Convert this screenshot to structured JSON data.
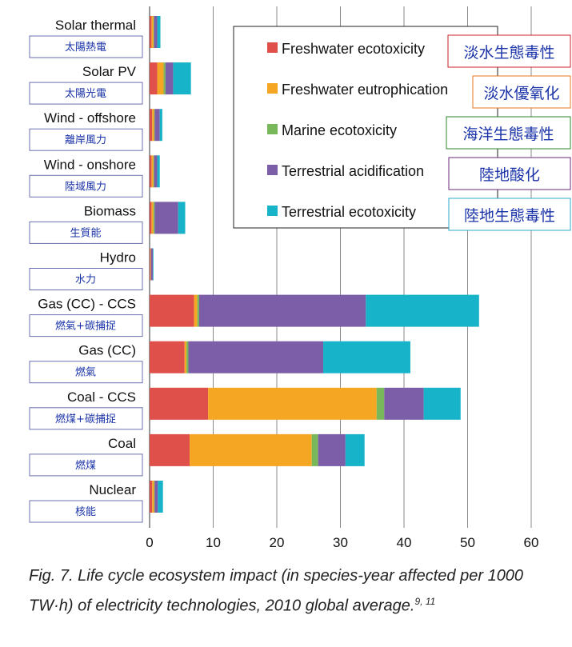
{
  "chart_data": {
    "type": "bar",
    "orientation": "horizontal",
    "stacked": true,
    "categories": [
      "Solar thermal",
      "Solar PV",
      "Wind - offshore",
      "Wind - onshore",
      "Biomass",
      "Hydro",
      "Gas (CC) - CCS",
      "Gas (CC)",
      "Coal - CCS",
      "Coal",
      "Nuclear"
    ],
    "categories_zh": [
      "太陽熱電",
      "太陽光電",
      "離岸風力",
      "陸域風力",
      "生質能",
      "水力",
      "燃氣+碳捕捉",
      "燃氣",
      "燃煤+碳捕捉",
      "燃煤",
      "核能"
    ],
    "series": [
      {
        "name": "Freshwater ecotoxicity",
        "name_zh": "淡水生態毒性",
        "color": "#e0504a",
        "values": [
          0.3,
          1.2,
          0.4,
          0.3,
          0.3,
          0.1,
          7.0,
          5.5,
          9.2,
          6.3,
          0.4
        ]
      },
      {
        "name": "Freshwater eutrophication",
        "name_zh": "淡水優氧化",
        "color": "#f5a623",
        "values": [
          0.3,
          1.0,
          0.3,
          0.3,
          0.3,
          0.1,
          0.5,
          0.3,
          26.5,
          19.2,
          0.3
        ]
      },
      {
        "name": "Marine ecotoxicity",
        "name_zh": "海洋生態毒性",
        "color": "#79b85a",
        "values": [
          0.1,
          0.3,
          0.1,
          0.1,
          0.2,
          0.0,
          0.3,
          0.3,
          1.2,
          1.0,
          0.1
        ]
      },
      {
        "name": "Terrestrial acidification",
        "name_zh": "陸地酸化",
        "color": "#7b5ea7",
        "values": [
          0.5,
          1.2,
          0.8,
          0.5,
          3.7,
          0.3,
          26.2,
          21.2,
          6.2,
          4.3,
          0.5
        ]
      },
      {
        "name": "Terrestrial ecotoxicity",
        "name_zh": "陸地生態毒性",
        "color": "#17b3c8",
        "values": [
          0.5,
          2.8,
          0.4,
          0.4,
          1.1,
          0.1,
          17.8,
          13.7,
          5.8,
          3.0,
          0.8
        ]
      }
    ],
    "xlim": [
      0,
      60
    ],
    "xticks": [
      0,
      10,
      20,
      30,
      40,
      50,
      60
    ],
    "grid": true,
    "legend_placement": "top-right",
    "legend_zh_border_colors": [
      "#c8202a",
      "#e87a1a",
      "#2a8a2a",
      "#6a2a7a",
      "#28a8c8"
    ],
    "title": "",
    "xlabel": "",
    "ylabel": ""
  },
  "caption": {
    "text": "Fig. 7. Life cycle ecosystem impact (in species-year affected per 1000 TW·h) of electricity technologies, 2010 global average.",
    "superscript": "9, 11"
  }
}
